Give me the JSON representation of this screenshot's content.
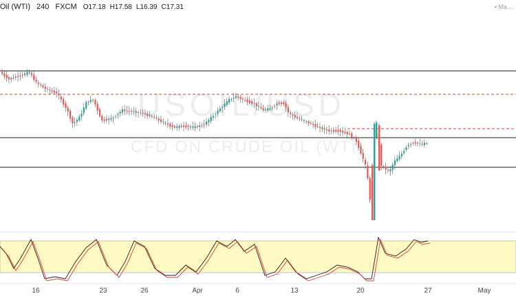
{
  "legend": {
    "symbol": "Oil (WTI)",
    "interval": "240",
    "source": "FXCM",
    "open": "O17.18",
    "high": "H17.58",
    "low": "L16.39",
    "close": "C17.31"
  },
  "ma_label": "Ma",
  "watermark": {
    "main": "USOIL/USD",
    "sub": "CFD ON CRUDE OIL (WTI)"
  },
  "x_axis_labels": [
    "16",
    "23",
    "26",
    "Apr",
    "6",
    "13",
    "20",
    "27",
    "May"
  ],
  "colors": {
    "up": "#26a69a",
    "down": "#ef5350",
    "wick": "#555555",
    "level_line": "#1e1e1e",
    "dashed_line": "#e53935",
    "stoch_zone": "#fff9c4",
    "stoch_k": "#1e1e1e",
    "stoch_d": "#e53935"
  },
  "chart_data": {
    "type": "candlestick",
    "interval": "240",
    "last_candle": {
      "open": 17.18,
      "high": 17.58,
      "low": 16.39,
      "close": 17.31
    },
    "horizontal_levels": {
      "solid": 3,
      "dashed": 2
    },
    "oscillator": {
      "type": "stochastic",
      "lines": [
        "K",
        "D"
      ]
    },
    "x_axis_labels": [
      "16",
      "23",
      "26",
      "Apr",
      "6",
      "13",
      "20",
      "27",
      "May"
    ]
  }
}
